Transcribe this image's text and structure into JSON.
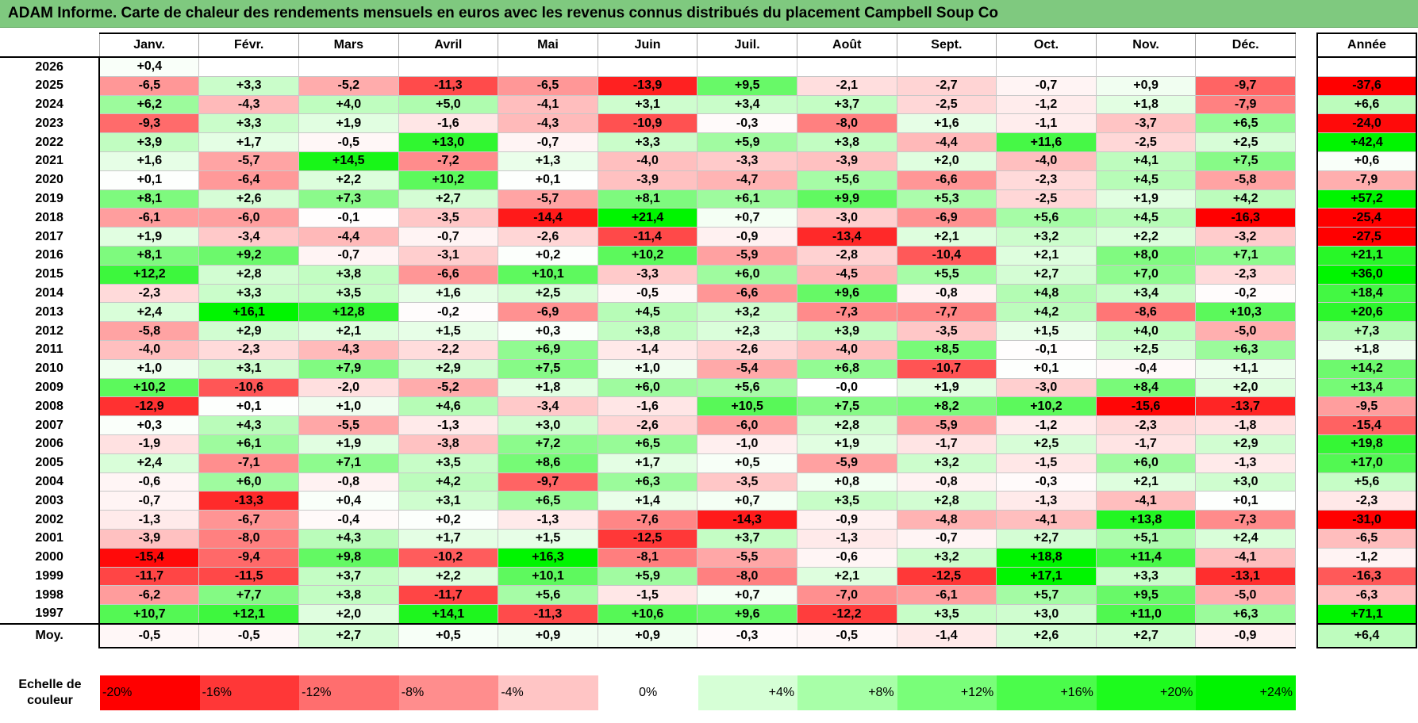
{
  "title": "ADAM Informe. Carte de chaleur des rendements mensuels en euros avec les revenus connus distribués du placement Campbell Soup Co",
  "chart_data": {
    "type": "heatmap",
    "columns": [
      "Janv.",
      "Févr.",
      "Mars",
      "Avril",
      "Mai",
      "Juin",
      "Juil.",
      "Août",
      "Sept.",
      "Oct.",
      "Nov.",
      "Déc."
    ],
    "year_column_label": "Année",
    "rows": [
      {
        "year": "2026",
        "values": [
          "+0,4",
          "",
          "",
          "",
          "",
          "",
          "",
          "",
          "",
          "",
          "",
          ""
        ],
        "annual": ""
      },
      {
        "year": "2025",
        "values": [
          "-6,5",
          "+3,3",
          "-5,2",
          "-11,3",
          "-6,5",
          "-13,9",
          "+9,5",
          "-2,1",
          "-2,7",
          "-0,7",
          "+0,9",
          "-9,7"
        ],
        "annual": "-37,6"
      },
      {
        "year": "2024",
        "values": [
          "+6,2",
          "-4,3",
          "+4,0",
          "+5,0",
          "-4,1",
          "+3,1",
          "+3,4",
          "+3,7",
          "-2,5",
          "-1,2",
          "+1,8",
          "-7,9"
        ],
        "annual": "+6,6"
      },
      {
        "year": "2023",
        "values": [
          "-9,3",
          "+3,3",
          "+1,9",
          "-1,6",
          "-4,3",
          "-10,9",
          "-0,3",
          "-8,0",
          "+1,6",
          "-1,1",
          "-3,7",
          "+6,5"
        ],
        "annual": "-24,0"
      },
      {
        "year": "2022",
        "values": [
          "+3,9",
          "+1,7",
          "-0,5",
          "+13,0",
          "-0,7",
          "+3,3",
          "+5,9",
          "+3,8",
          "-4,4",
          "+11,6",
          "-2,5",
          "+2,5"
        ],
        "annual": "+42,4"
      },
      {
        "year": "2021",
        "values": [
          "+1,6",
          "-5,7",
          "+14,5",
          "-7,2",
          "+1,3",
          "-4,0",
          "-3,3",
          "-3,9",
          "+2,0",
          "-4,0",
          "+4,1",
          "+7,5"
        ],
        "annual": "+0,6"
      },
      {
        "year": "2020",
        "values": [
          "+0,1",
          "-6,4",
          "+2,2",
          "+10,2",
          "+0,1",
          "-3,9",
          "-4,7",
          "+5,6",
          "-6,6",
          "-2,3",
          "+4,5",
          "-5,8"
        ],
        "annual": "-7,9"
      },
      {
        "year": "2019",
        "values": [
          "+8,1",
          "+2,6",
          "+7,3",
          "+2,7",
          "-5,7",
          "+8,1",
          "+6,1",
          "+9,9",
          "+5,3",
          "-2,5",
          "+1,9",
          "+4,2"
        ],
        "annual": "+57,2"
      },
      {
        "year": "2018",
        "values": [
          "-6,1",
          "-6,0",
          "-0,1",
          "-3,5",
          "-14,4",
          "+21,4",
          "+0,7",
          "-3,0",
          "-6,9",
          "+5,6",
          "+4,5",
          "-16,3"
        ],
        "annual": "-25,4"
      },
      {
        "year": "2017",
        "values": [
          "+1,9",
          "-3,4",
          "-4,4",
          "-0,7",
          "-2,6",
          "-11,4",
          "-0,9",
          "-13,4",
          "+2,1",
          "+3,2",
          "+2,2",
          "-3,2"
        ],
        "annual": "-27,5"
      },
      {
        "year": "2016",
        "values": [
          "+8,1",
          "+9,2",
          "-0,7",
          "-3,1",
          "+0,2",
          "+10,2",
          "-5,9",
          "-2,8",
          "-10,4",
          "+2,1",
          "+8,0",
          "+7,1"
        ],
        "annual": "+21,1"
      },
      {
        "year": "2015",
        "values": [
          "+12,2",
          "+2,8",
          "+3,8",
          "-6,6",
          "+10,1",
          "-3,3",
          "+6,0",
          "-4,5",
          "+5,5",
          "+2,7",
          "+7,0",
          "-2,3"
        ],
        "annual": "+36,0"
      },
      {
        "year": "2014",
        "values": [
          "-2,3",
          "+3,3",
          "+3,5",
          "+1,6",
          "+2,5",
          "-0,5",
          "-6,6",
          "+9,6",
          "-0,8",
          "+4,8",
          "+3,4",
          "-0,2"
        ],
        "annual": "+18,4"
      },
      {
        "year": "2013",
        "values": [
          "+2,4",
          "+16,1",
          "+12,8",
          "-0,2",
          "-6,9",
          "+4,5",
          "+3,2",
          "-7,3",
          "-7,7",
          "+4,2",
          "-8,6",
          "+10,3"
        ],
        "annual": "+20,6"
      },
      {
        "year": "2012",
        "values": [
          "-5,8",
          "+2,9",
          "+2,1",
          "+1,5",
          "+0,3",
          "+3,8",
          "+2,3",
          "+3,9",
          "-3,5",
          "+1,5",
          "+4,0",
          "-5,0"
        ],
        "annual": "+7,3"
      },
      {
        "year": "2011",
        "values": [
          "-4,0",
          "-2,3",
          "-4,3",
          "-2,2",
          "+6,9",
          "-1,4",
          "-2,6",
          "-4,0",
          "+8,5",
          "-0,1",
          "+2,5",
          "+6,3"
        ],
        "annual": "+1,8"
      },
      {
        "year": "2010",
        "values": [
          "+1,0",
          "+3,1",
          "+7,9",
          "+2,9",
          "+7,5",
          "+1,0",
          "-5,4",
          "+6,8",
          "-10,7",
          "+0,1",
          "-0,4",
          "+1,1"
        ],
        "annual": "+14,2"
      },
      {
        "year": "2009",
        "values": [
          "+10,2",
          "-10,6",
          "-2,0",
          "-5,2",
          "+1,8",
          "+6,0",
          "+5,6",
          "-0,0",
          "+1,9",
          "-3,0",
          "+8,4",
          "+2,0"
        ],
        "annual": "+13,4"
      },
      {
        "year": "2008",
        "values": [
          "-12,9",
          "+0,1",
          "+1,0",
          "+4,6",
          "-3,4",
          "-1,6",
          "+10,5",
          "+7,5",
          "+8,2",
          "+10,2",
          "-15,6",
          "-13,7"
        ],
        "annual": "-9,5"
      },
      {
        "year": "2007",
        "values": [
          "+0,3",
          "+4,3",
          "-5,5",
          "-1,3",
          "+3,0",
          "-2,6",
          "-6,0",
          "+2,8",
          "-5,9",
          "-1,2",
          "-2,3",
          "-1,8"
        ],
        "annual": "-15,4"
      },
      {
        "year": "2006",
        "values": [
          "-1,9",
          "+6,1",
          "+1,9",
          "-3,8",
          "+7,2",
          "+6,5",
          "-1,0",
          "+1,9",
          "-1,7",
          "+2,5",
          "-1,7",
          "+2,9"
        ],
        "annual": "+19,8"
      },
      {
        "year": "2005",
        "values": [
          "+2,4",
          "-7,1",
          "+7,1",
          "+3,5",
          "+8,6",
          "+1,7",
          "+0,5",
          "-5,9",
          "+3,2",
          "-1,5",
          "+6,0",
          "-1,3"
        ],
        "annual": "+17,0"
      },
      {
        "year": "2004",
        "values": [
          "-0,6",
          "+6,0",
          "-0,8",
          "+4,2",
          "-9,7",
          "+6,3",
          "-3,5",
          "+0,8",
          "-0,8",
          "-0,3",
          "+2,1",
          "+3,0"
        ],
        "annual": "+5,6"
      },
      {
        "year": "2003",
        "values": [
          "-0,7",
          "-13,3",
          "+0,4",
          "+3,1",
          "+6,5",
          "+1,4",
          "+0,7",
          "+3,5",
          "+2,8",
          "-1,3",
          "-4,1",
          "+0,1"
        ],
        "annual": "-2,3"
      },
      {
        "year": "2002",
        "values": [
          "-1,3",
          "-6,7",
          "-0,4",
          "+0,2",
          "-1,3",
          "-7,6",
          "-14,3",
          "-0,9",
          "-4,8",
          "-4,1",
          "+13,8",
          "-7,3"
        ],
        "annual": "-31,0"
      },
      {
        "year": "2001",
        "values": [
          "-3,9",
          "-8,0",
          "+4,3",
          "+1,7",
          "+1,5",
          "-12,5",
          "+3,7",
          "-1,3",
          "-0,7",
          "+2,7",
          "+5,1",
          "+2,4"
        ],
        "annual": "-6,5"
      },
      {
        "year": "2000",
        "values": [
          "-15,4",
          "-9,4",
          "+9,8",
          "-10,2",
          "+16,3",
          "-8,1",
          "-5,5",
          "-0,6",
          "+3,2",
          "+18,8",
          "+11,4",
          "-4,1"
        ],
        "annual": "-1,2"
      },
      {
        "year": "1999",
        "values": [
          "-11,7",
          "-11,5",
          "+3,7",
          "+2,2",
          "+10,1",
          "+5,9",
          "-8,0",
          "+2,1",
          "-12,5",
          "+17,1",
          "+3,3",
          "-13,1"
        ],
        "annual": "-16,3"
      },
      {
        "year": "1998",
        "values": [
          "-6,2",
          "+7,7",
          "+3,8",
          "-11,7",
          "+5,6",
          "-1,5",
          "+0,7",
          "-7,0",
          "-6,1",
          "+5,7",
          "+9,5",
          "-5,0"
        ],
        "annual": "-6,3"
      },
      {
        "year": "1997",
        "values": [
          "+10,7",
          "+12,1",
          "+2,0",
          "+14,1",
          "-11,3",
          "+10,6",
          "+9,6",
          "-12,2",
          "+3,5",
          "+3,0",
          "+11,0",
          "+6,3"
        ],
        "annual": "+71,1"
      }
    ],
    "average": {
      "label": "Moy.",
      "values": [
        "-0,5",
        "-0,5",
        "+2,7",
        "+0,5",
        "+0,9",
        "+0,9",
        "-0,3",
        "-0,5",
        "-1,4",
        "+2,6",
        "+2,7",
        "-0,9"
      ],
      "annual": "+6,4"
    },
    "color_scale": {
      "label": "Echelle de couleur",
      "stops": [
        "-20%",
        "-16%",
        "-12%",
        "-8%",
        "-4%",
        "0%",
        "+4%",
        "+8%",
        "+12%",
        "+16%",
        "+20%",
        "+24%"
      ],
      "colors": [
        "#ff0000",
        "#ff3737",
        "#ff6e6e",
        "#ff8d8d",
        "#ffc5c5",
        "#ffffff",
        "#d6ffd6",
        "#a8ffa8",
        "#79fe79",
        "#4bfc4b",
        "#1dfb1d",
        "#00f400"
      ]
    }
  }
}
